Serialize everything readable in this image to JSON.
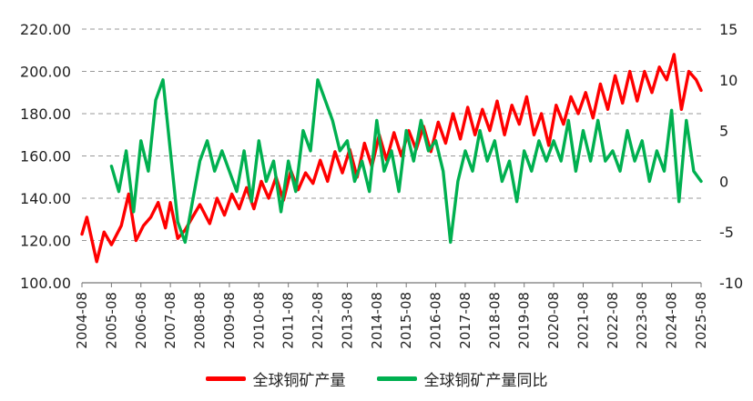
{
  "chart_data": {
    "type": "line",
    "title": "",
    "x_start": "2004-08",
    "x_end": "2025-08",
    "x_tick_labels": [
      "2004-08",
      "2005-08",
      "2006-08",
      "2007-08",
      "2008-08",
      "2009-08",
      "2010-08",
      "2011-08",
      "2012-08",
      "2013-08",
      "2014-08",
      "2015-08",
      "2016-08",
      "2017-08",
      "2018-08",
      "2019-08",
      "2020-08",
      "2021-08",
      "2022-08",
      "2023-08",
      "2024-08",
      "2025-08"
    ],
    "left_axis": {
      "ylim": [
        100,
        220
      ],
      "ticks": [
        "100.00",
        "120.00",
        "140.00",
        "160.00",
        "180.00",
        "200.00",
        "220.00"
      ],
      "label": ""
    },
    "right_axis": {
      "ylim": [
        -10,
        15
      ],
      "ticks": [
        "-10",
        "-5",
        "0",
        "5",
        "10",
        "15"
      ],
      "label": ""
    },
    "grid": "horizontal-dashed",
    "legend_position": "bottom",
    "series": [
      {
        "name": "全球铜矿产量",
        "axis": "left",
        "color": "#ff0000",
        "x": [
          "2004-08",
          "2004-10",
          "2005-02",
          "2005-05",
          "2005-08",
          "2005-12",
          "2006-03",
          "2006-06",
          "2006-09",
          "2006-12",
          "2007-03",
          "2007-06",
          "2007-08",
          "2007-11",
          "2008-02",
          "2008-05",
          "2008-08",
          "2008-12",
          "2009-03",
          "2009-06",
          "2009-09",
          "2009-12",
          "2010-03",
          "2010-06",
          "2010-09",
          "2010-12",
          "2011-03",
          "2011-06",
          "2011-09",
          "2011-12",
          "2012-03",
          "2012-06",
          "2012-09",
          "2012-12",
          "2013-03",
          "2013-06",
          "2013-09",
          "2013-12",
          "2014-03",
          "2014-06",
          "2014-09",
          "2014-12",
          "2015-03",
          "2015-06",
          "2015-09",
          "2015-12",
          "2016-03",
          "2016-06",
          "2016-09",
          "2016-12",
          "2017-03",
          "2017-06",
          "2017-09",
          "2017-12",
          "2018-03",
          "2018-06",
          "2018-09",
          "2018-12",
          "2019-03",
          "2019-06",
          "2019-09",
          "2019-12",
          "2020-03",
          "2020-06",
          "2020-09",
          "2020-12",
          "2021-03",
          "2021-06",
          "2021-09",
          "2021-12",
          "2022-03",
          "2022-06",
          "2022-09",
          "2022-12",
          "2023-03",
          "2023-06",
          "2023-09",
          "2023-12",
          "2024-03",
          "2024-06",
          "2024-09",
          "2024-12",
          "2025-03",
          "2025-06",
          "2025-08"
        ],
        "y": [
          123,
          131,
          110,
          124,
          118,
          127,
          142,
          120,
          127,
          131,
          138,
          126,
          138,
          121,
          125,
          131,
          137,
          128,
          140,
          132,
          142,
          135,
          145,
          135,
          148,
          140,
          150,
          139,
          153,
          144,
          152,
          147,
          158,
          148,
          162,
          152,
          163,
          150,
          166,
          155,
          170,
          158,
          171,
          160,
          172,
          163,
          174,
          162,
          176,
          166,
          180,
          168,
          183,
          170,
          182,
          172,
          186,
          170,
          184,
          175,
          188,
          170,
          180,
          165,
          184,
          175,
          188,
          180,
          190,
          178,
          194,
          182,
          198,
          185,
          200,
          186,
          200,
          190,
          202,
          196,
          208,
          182,
          200,
          196,
          191
        ]
      },
      {
        "name": "全球铜矿产量同比",
        "axis": "right",
        "color": "#00b050",
        "x": [
          "2005-08",
          "2005-11",
          "2006-02",
          "2006-05",
          "2006-08",
          "2006-11",
          "2007-02",
          "2007-05",
          "2007-08",
          "2007-11",
          "2008-02",
          "2008-05",
          "2008-08",
          "2008-11",
          "2009-02",
          "2009-05",
          "2009-08",
          "2009-11",
          "2010-02",
          "2010-05",
          "2010-08",
          "2010-11",
          "2011-02",
          "2011-05",
          "2011-08",
          "2011-11",
          "2012-02",
          "2012-05",
          "2012-08",
          "2012-11",
          "2013-02",
          "2013-05",
          "2013-08",
          "2013-11",
          "2014-02",
          "2014-05",
          "2014-08",
          "2014-11",
          "2015-02",
          "2015-05",
          "2015-08",
          "2015-11",
          "2016-02",
          "2016-05",
          "2016-08",
          "2016-11",
          "2017-02",
          "2017-05",
          "2017-08",
          "2017-11",
          "2018-02",
          "2018-05",
          "2018-08",
          "2018-11",
          "2019-02",
          "2019-05",
          "2019-08",
          "2019-11",
          "2020-02",
          "2020-05",
          "2020-08",
          "2020-11",
          "2021-02",
          "2021-05",
          "2021-08",
          "2021-11",
          "2022-02",
          "2022-05",
          "2022-08",
          "2022-11",
          "2023-02",
          "2023-05",
          "2023-08",
          "2023-11",
          "2024-02",
          "2024-05",
          "2024-08",
          "2024-11",
          "2025-02",
          "2025-05",
          "2025-08"
        ],
        "y": [
          1.5,
          -1,
          3,
          -3,
          4,
          1,
          8,
          10,
          3,
          -4,
          -6,
          -2,
          2,
          4,
          1,
          3,
          1,
          -1,
          3,
          -2,
          4,
          0,
          2,
          -3,
          2,
          -1,
          5,
          3,
          10,
          8,
          6,
          3,
          4,
          0,
          2,
          -1,
          6,
          1,
          3,
          -1,
          5,
          2,
          6,
          3,
          4,
          1,
          -6,
          0,
          3,
          1,
          5,
          2,
          4,
          0,
          2,
          -2,
          3,
          1,
          4,
          2,
          4,
          2,
          6,
          1,
          5,
          2,
          6,
          2,
          3,
          1,
          5,
          2,
          4,
          0,
          3,
          1,
          7,
          -2,
          6,
          1,
          0
        ]
      }
    ]
  }
}
